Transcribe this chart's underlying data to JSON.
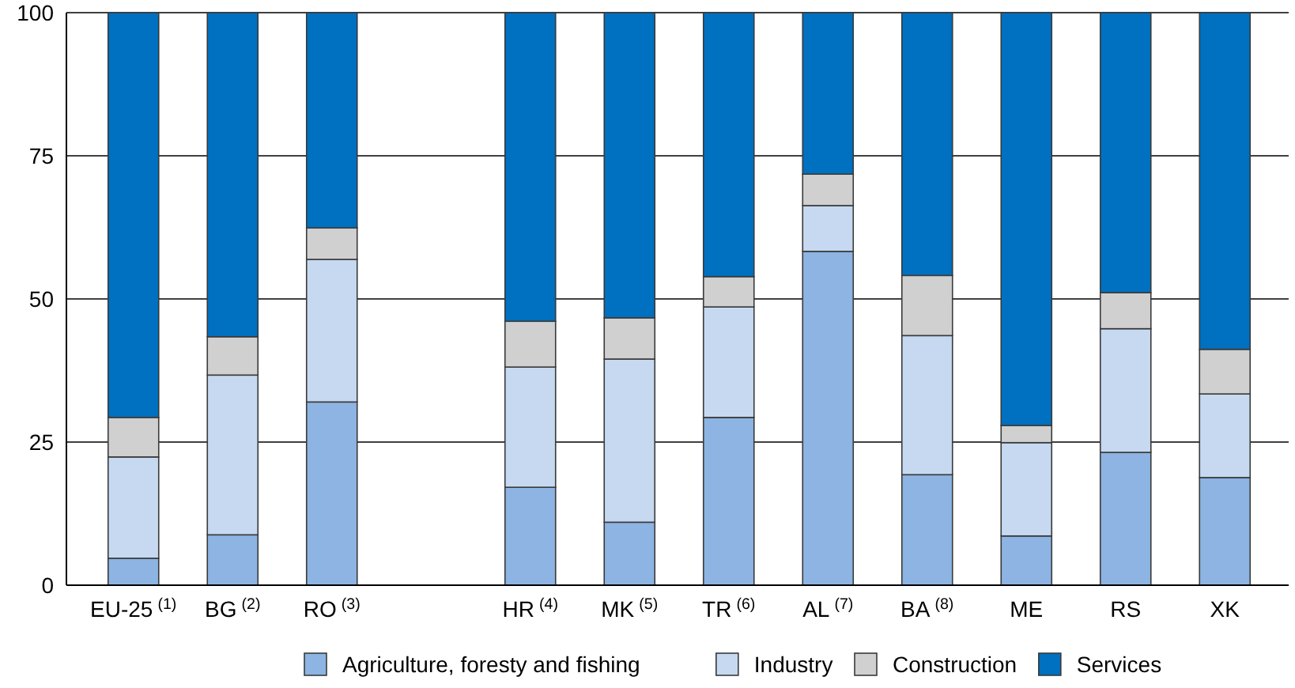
{
  "chart_data": {
    "type": "bar",
    "stacked": true,
    "categories": [
      "EU-25$^{(1)}$",
      "BG$^{(2)}$",
      "RO$^{(3)}$",
      null,
      "HR$^{(4)}$",
      "MK$^{(5)}$",
      "TR$^{(6)}$",
      "AL$^{(7)}$",
      "BA$^{(8)}$",
      "ME",
      "RS",
      "XK"
    ],
    "series": [
      {
        "name": "Agriculture, foresty and fishing",
        "color": "#8db4e2",
        "values": [
          4.7,
          8.8,
          32.0,
          null,
          17.1,
          11.0,
          29.3,
          58.3,
          19.3,
          8.6,
          23.2,
          18.8
        ]
      },
      {
        "name": "Industry",
        "color": "#c6d9f1",
        "values": [
          17.7,
          27.9,
          24.9,
          null,
          21.0,
          28.5,
          19.3,
          8.0,
          24.3,
          16.3,
          21.6,
          14.6
        ]
      },
      {
        "name": "Construction",
        "color": "#d0d0d0",
        "values": [
          6.9,
          6.7,
          5.5,
          null,
          8.0,
          7.2,
          5.3,
          5.5,
          10.5,
          3.0,
          6.3,
          7.8
        ]
      },
      {
        "name": "Services",
        "color": "#0070c0",
        "values": [
          70.7,
          56.6,
          37.6,
          null,
          53.9,
          53.3,
          46.1,
          28.2,
          45.9,
          72.1,
          48.9,
          58.8
        ]
      }
    ],
    "ylim": [
      0,
      100
    ],
    "yticks": [
      0,
      25,
      50,
      75,
      100
    ],
    "grid": "y",
    "legend": "bottom"
  }
}
